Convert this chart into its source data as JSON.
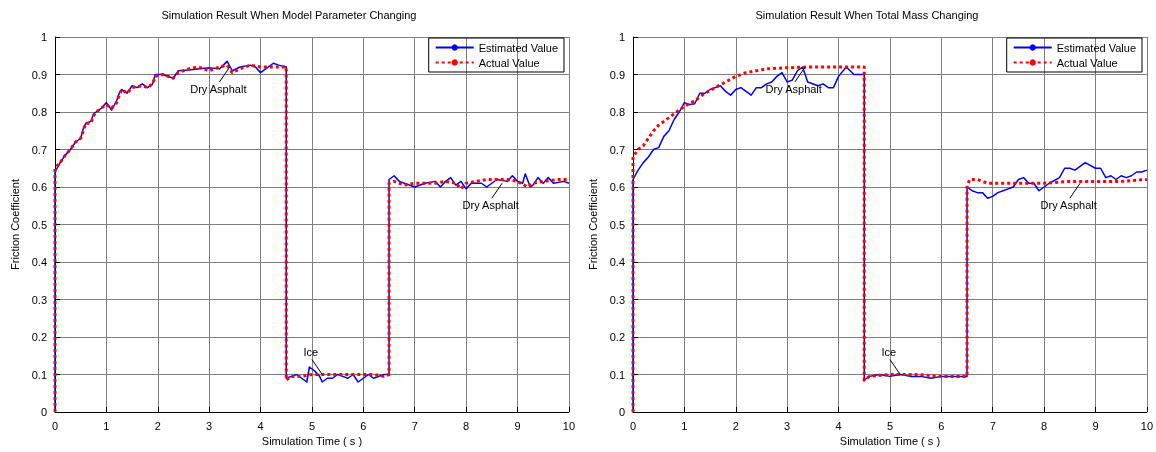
{
  "chart_data": [
    {
      "type": "line",
      "title": "Simulation Result When Model Parameter Changing",
      "xlabel": "Simulation Time ( s )",
      "ylabel": "Friction Coefficient",
      "xlim": [
        0,
        10
      ],
      "xticks": [
        0,
        1,
        2,
        3,
        4,
        5,
        6,
        7,
        8,
        9,
        10
      ],
      "ylim": [
        0,
        1
      ],
      "yticks": [
        0,
        0.1,
        0.2,
        0.3,
        0.4,
        0.5,
        0.6,
        0.7,
        0.8,
        0.9,
        1
      ],
      "grid": true,
      "legend": "top right",
      "marker": "none",
      "series": [
        {
          "name": "Estimated Value",
          "color": "#0000ff",
          "line_style": "solid",
          "x": [
            0,
            0,
            0.1,
            0.2,
            0.3,
            0.4,
            0.5,
            0.55,
            0.6,
            0.7,
            0.75,
            0.8,
            0.9,
            1.0,
            1.1,
            1.2,
            1.25,
            1.3,
            1.4,
            1.5,
            1.6,
            1.7,
            1.8,
            1.9,
            1.95,
            2.1,
            2.3,
            2.4,
            2.6,
            3.0,
            3.2,
            3.35,
            3.45,
            3.6,
            3.8,
            3.9,
            4.0,
            4.1,
            4.25,
            4.35,
            4.5,
            4.5,
            4.6,
            4.7,
            4.8,
            4.9,
            4.95,
            5.05,
            5.15,
            5.2,
            5.3,
            5.4,
            5.5,
            5.6,
            5.7,
            5.8,
            5.9,
            6.0,
            6.1,
            6.2,
            6.4,
            6.5,
            6.5,
            6.6,
            6.7,
            6.8,
            7.0,
            7.2,
            7.4,
            7.5,
            7.6,
            7.7,
            7.8,
            7.9,
            8.0,
            8.1,
            8.3,
            8.4,
            8.6,
            8.8,
            8.9,
            9.0,
            9.1,
            9.15,
            9.25,
            9.3,
            9.4,
            9.5,
            9.6,
            9.7,
            9.9,
            10
          ],
          "values": [
            0,
            0.64,
            0.665,
            0.685,
            0.7,
            0.72,
            0.73,
            0.755,
            0.77,
            0.775,
            0.795,
            0.8,
            0.81,
            0.825,
            0.805,
            0.83,
            0.85,
            0.86,
            0.85,
            0.87,
            0.865,
            0.875,
            0.865,
            0.875,
            0.9,
            0.9,
            0.89,
            0.91,
            0.912,
            0.918,
            0.915,
            0.935,
            0.91,
            0.92,
            0.925,
            0.92,
            0.905,
            0.915,
            0.93,
            0.925,
            0.92,
            0.09,
            0.095,
            0.1,
            0.09,
            0.08,
            0.12,
            0.11,
            0.095,
            0.08,
            0.09,
            0.09,
            0.1,
            0.095,
            0.09,
            0.1,
            0.08,
            0.09,
            0.1,
            0.09,
            0.1,
            0.1,
            0.62,
            0.63,
            0.615,
            0.61,
            0.6,
            0.61,
            0.615,
            0.6,
            0.615,
            0.625,
            0.605,
            0.615,
            0.595,
            0.61,
            0.61,
            0.6,
            0.62,
            0.615,
            0.63,
            0.615,
            0.61,
            0.635,
            0.6,
            0.605,
            0.625,
            0.61,
            0.625,
            0.61,
            0.615,
            0.61
          ]
        },
        {
          "name": "Actual Value",
          "color": "#ff0000",
          "line_style": "dotted",
          "x": [
            0,
            0,
            0.1,
            0.2,
            0.3,
            0.4,
            0.5,
            0.55,
            0.6,
            0.7,
            0.75,
            0.8,
            0.9,
            1.0,
            1.1,
            1.2,
            1.25,
            1.3,
            1.4,
            1.5,
            1.7,
            1.8,
            1.9,
            1.95,
            2.1,
            2.3,
            2.4,
            2.6,
            2.8,
            3.0,
            3.2,
            3.35,
            3.45,
            3.6,
            3.8,
            4.0,
            4.2,
            4.5,
            4.5,
            4.6,
            4.8,
            5.0,
            5.2,
            5.4,
            5.6,
            5.8,
            6.0,
            6.2,
            6.4,
            6.5,
            6.5,
            6.6,
            6.8,
            7.0,
            7.2,
            7.4,
            7.6,
            7.8,
            7.9,
            8.0,
            8.2,
            8.4,
            8.6,
            8.8,
            9.0,
            9.2,
            9.3,
            9.5,
            9.8,
            10
          ],
          "values": [
            0,
            0.65,
            0.665,
            0.685,
            0.7,
            0.72,
            0.73,
            0.75,
            0.77,
            0.77,
            0.79,
            0.8,
            0.81,
            0.82,
            0.81,
            0.825,
            0.845,
            0.86,
            0.85,
            0.865,
            0.87,
            0.865,
            0.875,
            0.895,
            0.9,
            0.89,
            0.905,
            0.915,
            0.92,
            0.91,
            0.92,
            0.925,
            0.905,
            0.915,
            0.925,
            0.92,
            0.92,
            0.92,
            0.085,
            0.095,
            0.095,
            0.1,
            0.1,
            0.1,
            0.1,
            0.1,
            0.1,
            0.1,
            0.095,
            0.1,
            0.61,
            0.615,
            0.605,
            0.61,
            0.61,
            0.61,
            0.615,
            0.61,
            0.595,
            0.61,
            0.615,
            0.62,
            0.62,
            0.62,
            0.615,
            0.6,
            0.61,
            0.615,
            0.62,
            0.62
          ]
        }
      ],
      "annotations": [
        {
          "text": "Dry Asphalt",
          "x": 3.4,
          "y": 0.92
        },
        {
          "text": "Ice",
          "x": 5.2,
          "y": 0.1
        },
        {
          "text": "Dry Asphalt",
          "x": 8.7,
          "y": 0.61
        }
      ]
    },
    {
      "type": "line",
      "title": "Simulation Result When Total Mass Changing",
      "xlabel": "Simulation Time ( s )",
      "ylabel": "Friction Coefficient",
      "xlim": [
        0,
        10
      ],
      "xticks": [
        0,
        1,
        2,
        3,
        4,
        5,
        6,
        7,
        8,
        9,
        10
      ],
      "ylim": [
        0,
        1
      ],
      "yticks": [
        0,
        0.1,
        0.2,
        0.3,
        0.4,
        0.5,
        0.6,
        0.7,
        0.8,
        0.9,
        1
      ],
      "grid": true,
      "legend": "top right",
      "marker": "none",
      "series": [
        {
          "name": "Estimated Value",
          "color": "#0000ff",
          "line_style": "solid",
          "x": [
            0,
            0,
            0.1,
            0.2,
            0.3,
            0.4,
            0.5,
            0.6,
            0.7,
            0.8,
            0.9,
            1.0,
            1.1,
            1.2,
            1.3,
            1.4,
            1.5,
            1.6,
            1.7,
            1.8,
            1.9,
            2.0,
            2.1,
            2.2,
            2.3,
            2.4,
            2.5,
            2.6,
            2.7,
            2.8,
            2.9,
            3.0,
            3.1,
            3.2,
            3.3,
            3.4,
            3.6,
            3.7,
            3.8,
            3.9,
            4.0,
            4.15,
            4.3,
            4.5,
            4.5,
            4.6,
            4.8,
            5.0,
            5.2,
            5.4,
            5.6,
            5.8,
            6.0,
            6.2,
            6.5,
            6.5,
            6.6,
            6.7,
            6.8,
            6.9,
            7.0,
            7.1,
            7.2,
            7.3,
            7.4,
            7.5,
            7.6,
            7.7,
            7.8,
            7.9,
            8.0,
            8.1,
            8.3,
            8.4,
            8.5,
            8.6,
            8.8,
            9.0,
            9.1,
            9.2,
            9.3,
            9.4,
            9.5,
            9.6,
            9.7,
            9.8,
            9.9,
            10
          ],
          "values": [
            0,
            0.62,
            0.645,
            0.665,
            0.68,
            0.7,
            0.705,
            0.735,
            0.75,
            0.78,
            0.8,
            0.825,
            0.82,
            0.822,
            0.85,
            0.85,
            0.86,
            0.865,
            0.87,
            0.855,
            0.845,
            0.86,
            0.865,
            0.855,
            0.845,
            0.865,
            0.865,
            0.875,
            0.88,
            0.895,
            0.905,
            0.88,
            0.885,
            0.91,
            0.92,
            0.88,
            0.87,
            0.875,
            0.865,
            0.865,
            0.895,
            0.92,
            0.9,
            0.9,
            0.085,
            0.095,
            0.1,
            0.095,
            0.1,
            0.095,
            0.095,
            0.09,
            0.095,
            0.095,
            0.095,
            0.6,
            0.59,
            0.585,
            0.585,
            0.57,
            0.575,
            0.585,
            0.59,
            0.595,
            0.6,
            0.62,
            0.625,
            0.61,
            0.61,
            0.59,
            0.6,
            0.61,
            0.625,
            0.65,
            0.65,
            0.645,
            0.665,
            0.65,
            0.65,
            0.625,
            0.63,
            0.62,
            0.63,
            0.625,
            0.63,
            0.64,
            0.64,
            0.645
          ]
        },
        {
          "name": "Actual Value",
          "color": "#ff0000",
          "line_style": "dotted",
          "x": [
            0,
            0,
            0.1,
            0.2,
            0.3,
            0.4,
            0.5,
            0.6,
            0.8,
            1.0,
            1.2,
            1.4,
            1.6,
            1.8,
            2.0,
            2.2,
            2.4,
            2.6,
            3.0,
            3.5,
            4.0,
            4.5,
            4.5,
            4.6,
            5.0,
            5.5,
            6.0,
            6.5,
            6.5,
            6.55,
            6.7,
            6.9,
            7.5,
            8.0,
            8.5,
            9.0,
            9.5,
            10
          ],
          "values": [
            0,
            0.68,
            0.7,
            0.71,
            0.73,
            0.75,
            0.765,
            0.775,
            0.795,
            0.815,
            0.83,
            0.85,
            0.865,
            0.88,
            0.895,
            0.905,
            0.91,
            0.915,
            0.918,
            0.92,
            0.92,
            0.92,
            0.085,
            0.095,
            0.1,
            0.1,
            0.095,
            0.095,
            0.6,
            0.62,
            0.62,
            0.61,
            0.61,
            0.61,
            0.615,
            0.615,
            0.615,
            0.62
          ]
        }
      ],
      "annotations": [
        {
          "text": "Dry Asphalt",
          "x": 3.35,
          "y": 0.92
        },
        {
          "text": "Ice",
          "x": 5.2,
          "y": 0.1
        },
        {
          "text": "Dry Asphalt",
          "x": 8.7,
          "y": 0.61
        }
      ]
    }
  ]
}
